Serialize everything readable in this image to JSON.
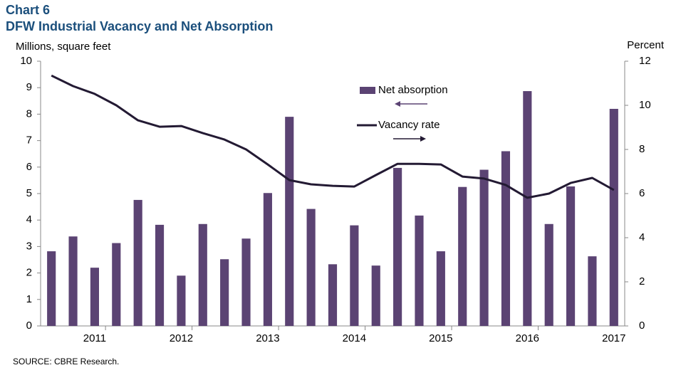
{
  "chart_data": {
    "type": "bar-line",
    "title": "Chart 6",
    "subtitle": "DFW Industrial Vacancy and Net Absorption",
    "y_label": "Millions, square feet",
    "y2_label": "Percent",
    "source": "SOURCE: CBRE Research.",
    "categories": [
      null,
      null,
      "2011",
      null,
      null,
      null,
      "2012",
      null,
      null,
      null,
      "2013",
      null,
      null,
      null,
      "2014",
      null,
      null,
      null,
      "2015",
      null,
      null,
      null,
      "2016",
      null,
      null,
      null,
      "2017"
    ],
    "series": [
      {
        "name": "Net absorption",
        "type": "bar",
        "color": "#5b4373",
        "axis": "y",
        "values": [
          2.82,
          3.38,
          2.2,
          3.13,
          4.76,
          3.82,
          1.9,
          3.85,
          2.52,
          3.3,
          5.02,
          7.9,
          4.42,
          2.33,
          3.8,
          2.28,
          5.97,
          4.17,
          2.82,
          5.25,
          5.9,
          6.6,
          8.87,
          3.85,
          5.27,
          2.63,
          8.2
        ]
      },
      {
        "name": "Vacancy rate",
        "type": "line",
        "color": "#231a33",
        "axis": "y2",
        "values": [
          11.35,
          10.87,
          10.52,
          10.0,
          9.32,
          9.03,
          9.06,
          8.74,
          8.45,
          8.0,
          7.32,
          6.61,
          6.42,
          6.35,
          6.32,
          6.84,
          7.35,
          7.35,
          7.32,
          6.77,
          6.68,
          6.39,
          5.81,
          6.0,
          6.48,
          6.71,
          6.16
        ]
      }
    ],
    "ylim": [
      0,
      10
    ],
    "yticks": [
      0,
      1,
      2,
      3,
      4,
      5,
      6,
      7,
      8,
      9,
      10
    ],
    "y2lim": [
      0,
      12
    ],
    "y2ticks": [
      0,
      2,
      4,
      6,
      8,
      10,
      12
    ],
    "grid": false
  }
}
